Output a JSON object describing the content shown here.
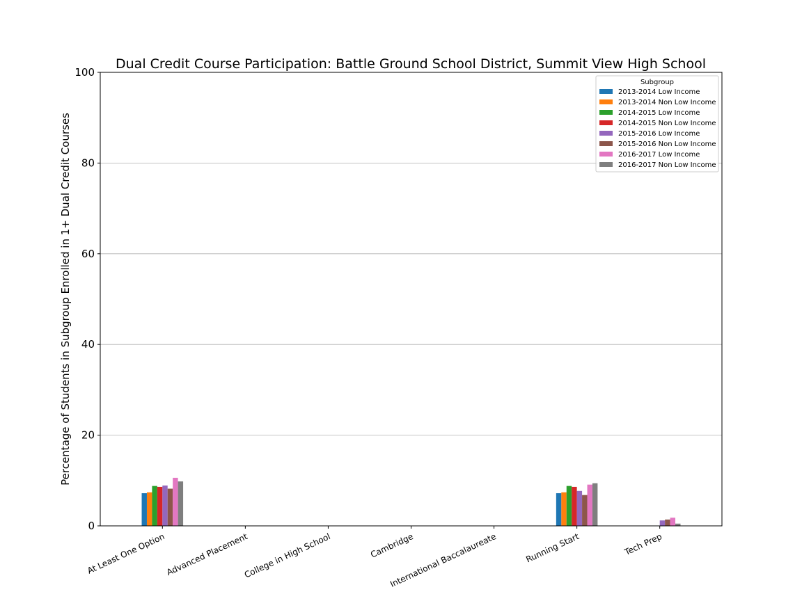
{
  "chart_data": {
    "type": "bar",
    "title": "Dual Credit Course Participation: Battle Ground School District, Summit View High School",
    "xlabel": "",
    "ylabel": "Percentage of Students in Subgroup Enrolled in 1+ Dual Credit Courses",
    "ylim": [
      0,
      100
    ],
    "yticks": [
      "0",
      "20",
      "40",
      "60",
      "80",
      "100"
    ],
    "grid": "horizontal",
    "legend_title": "Subgroup",
    "legend_position": "top-right",
    "categories": [
      "At Least One Option",
      "Advanced Placement",
      "College in High School",
      "Cambridge",
      "International Baccalaureate",
      "Running Start",
      "Tech Prep"
    ],
    "series": [
      {
        "name": "2013-2014 Low Income",
        "color": "#1f77b4",
        "values": [
          7.2,
          0,
          0,
          0,
          0,
          7.2,
          0
        ]
      },
      {
        "name": "2013-2014 Non Low Income",
        "color": "#ff7f0e",
        "values": [
          7.4,
          0,
          0,
          0,
          0,
          7.4,
          0
        ]
      },
      {
        "name": "2014-2015 Low Income",
        "color": "#2ca02c",
        "values": [
          8.8,
          0,
          0,
          0,
          0,
          8.8,
          0
        ]
      },
      {
        "name": "2014-2015 Non Low Income",
        "color": "#d62728",
        "values": [
          8.6,
          0,
          0,
          0,
          0,
          8.6,
          0
        ]
      },
      {
        "name": "2015-2016 Low Income",
        "color": "#9467bd",
        "values": [
          8.9,
          0,
          0,
          0,
          0,
          7.7,
          1.2
        ]
      },
      {
        "name": "2015-2016 Non Low Income",
        "color": "#8c564b",
        "values": [
          8.2,
          0,
          0,
          0,
          0,
          6.8,
          1.4
        ]
      },
      {
        "name": "2016-2017 Low Income",
        "color": "#e377c2",
        "values": [
          10.6,
          0,
          0,
          0,
          0,
          9.1,
          1.8
        ]
      },
      {
        "name": "2016-2017 Non Low Income",
        "color": "#7f7f7f",
        "values": [
          9.8,
          0,
          0,
          0,
          0,
          9.4,
          0.5
        ]
      }
    ]
  }
}
